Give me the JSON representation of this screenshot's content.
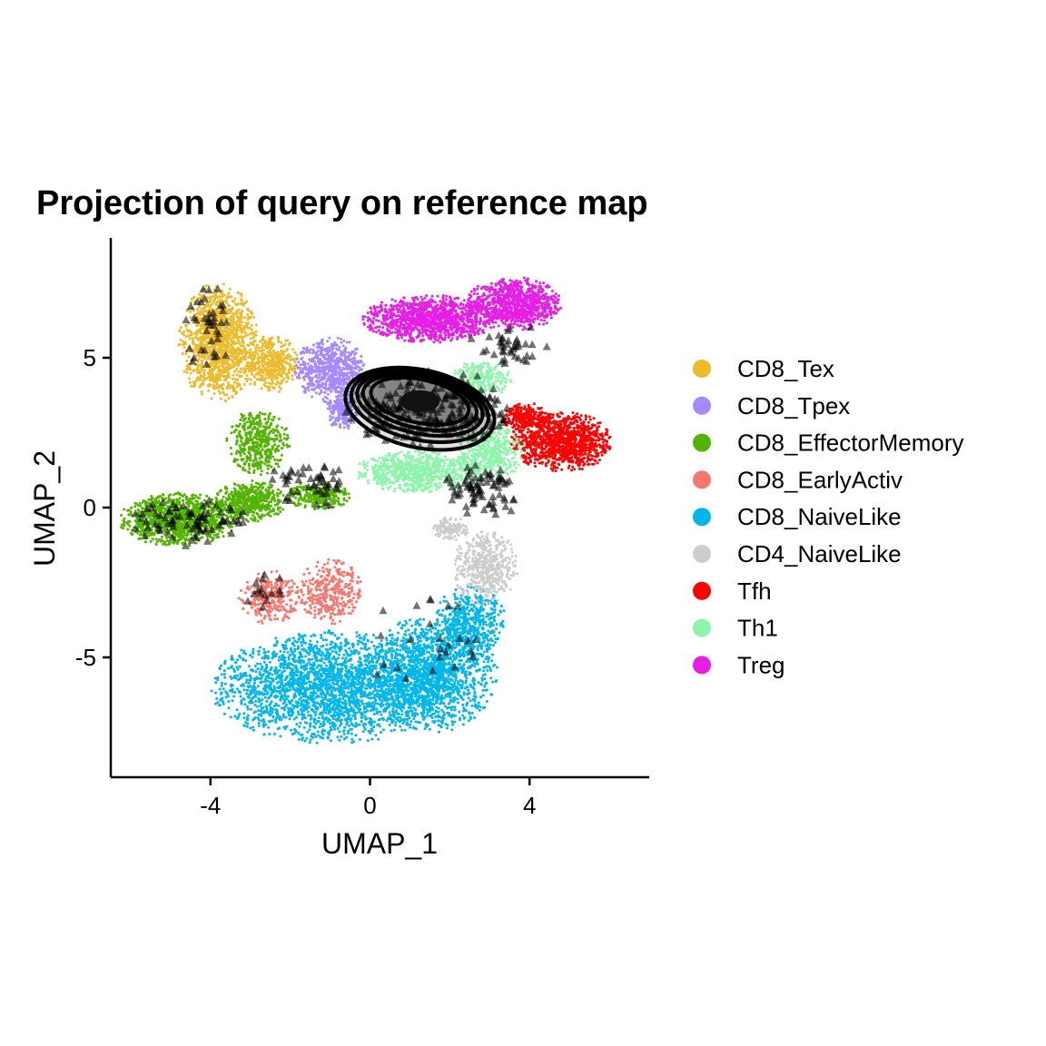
{
  "chart_data": {
    "type": "scatter",
    "title": "Projection of query on reference map",
    "xlabel": "UMAP_1",
    "ylabel": "UMAP_2",
    "xlim": [
      -6.5,
      7.0
    ],
    "ylim": [
      -9.0,
      9.0
    ],
    "x_ticks": [
      {
        "value": -4,
        "label": "-4"
      },
      {
        "value": 0,
        "label": "0"
      },
      {
        "value": 4,
        "label": "4"
      }
    ],
    "y_ticks": [
      {
        "value": 5,
        "label": "5"
      },
      {
        "value": 0,
        "label": "0"
      },
      {
        "value": -5,
        "label": "-5"
      }
    ],
    "grid": false,
    "legend_position": "right",
    "series": [
      {
        "name": "CD8_Tex",
        "color": "#EDBA2B",
        "regions": [
          {
            "cx": -3.8,
            "cy": 5.5,
            "rx": 1.0,
            "ry": 2.0,
            "n": 1300
          },
          {
            "cx": -2.5,
            "cy": 4.8,
            "rx": 0.7,
            "ry": 1.0,
            "n": 400
          }
        ]
      },
      {
        "name": "CD8_Tpex",
        "color": "#A58AFF",
        "regions": [
          {
            "cx": -1.0,
            "cy": 4.6,
            "rx": 0.9,
            "ry": 1.1,
            "n": 700
          },
          {
            "cx": -0.7,
            "cy": 3.2,
            "rx": 0.4,
            "ry": 0.6,
            "n": 200
          }
        ]
      },
      {
        "name": "CD8_EffectorMemory",
        "color": "#53B400",
        "regions": [
          {
            "cx": -4.8,
            "cy": -0.4,
            "rx": 1.5,
            "ry": 0.9,
            "n": 1100
          },
          {
            "cx": -3.0,
            "cy": 0.2,
            "rx": 0.9,
            "ry": 0.7,
            "n": 500
          },
          {
            "cx": -2.8,
            "cy": 2.2,
            "rx": 0.8,
            "ry": 1.1,
            "n": 450
          },
          {
            "cx": -1.3,
            "cy": 0.4,
            "rx": 0.8,
            "ry": 0.5,
            "n": 250
          }
        ]
      },
      {
        "name": "CD8_EarlyActiv",
        "color": "#F8766D",
        "regions": [
          {
            "cx": -2.5,
            "cy": -3.0,
            "rx": 0.8,
            "ry": 0.9,
            "n": 300
          },
          {
            "cx": -1.0,
            "cy": -2.8,
            "rx": 0.8,
            "ry": 1.1,
            "n": 350
          }
        ]
      },
      {
        "name": "CD8_NaiveLike",
        "color": "#00B6EB",
        "regions": [
          {
            "cx": -1.0,
            "cy": -6.0,
            "rx": 3.0,
            "ry": 1.9,
            "n": 2600
          },
          {
            "cx": 1.6,
            "cy": -5.5,
            "rx": 1.6,
            "ry": 2.0,
            "n": 1400
          },
          {
            "cx": 2.5,
            "cy": -3.8,
            "rx": 0.9,
            "ry": 1.2,
            "n": 500
          }
        ]
      },
      {
        "name": "CD4_NaiveLike",
        "color": "#CCCCCC",
        "regions": [
          {
            "cx": 2.9,
            "cy": -2.0,
            "rx": 0.8,
            "ry": 1.3,
            "n": 500
          },
          {
            "cx": 2.0,
            "cy": -0.7,
            "rx": 0.5,
            "ry": 0.4,
            "n": 120
          }
        ]
      },
      {
        "name": "Tfh",
        "color": "#FF0000",
        "regions": [
          {
            "cx": 4.8,
            "cy": 2.2,
            "rx": 1.3,
            "ry": 1.0,
            "n": 1100
          },
          {
            "cx": 3.9,
            "cy": 3.0,
            "rx": 0.6,
            "ry": 0.5,
            "n": 250
          }
        ]
      },
      {
        "name": "Th1",
        "color": "#8CF5A9",
        "regions": [
          {
            "cx": 1.2,
            "cy": 1.2,
            "rx": 1.6,
            "ry": 0.7,
            "n": 800
          },
          {
            "cx": 3.0,
            "cy": 1.8,
            "rx": 0.8,
            "ry": 1.0,
            "n": 450
          },
          {
            "cx": 2.8,
            "cy": 4.3,
            "rx": 0.8,
            "ry": 0.6,
            "n": 250
          }
        ]
      },
      {
        "name": "Treg",
        "color": "#E61EE6",
        "regions": [
          {
            "cx": 1.5,
            "cy": 6.3,
            "rx": 1.7,
            "ry": 0.8,
            "n": 1200
          },
          {
            "cx": 3.6,
            "cy": 6.8,
            "rx": 1.2,
            "ry": 0.9,
            "n": 900
          }
        ]
      }
    ],
    "query": {
      "marker": "triangle",
      "color": "#000000",
      "opacity": 0.55,
      "regions": [
        {
          "cx": 1.5,
          "cy": 3.3,
          "rx": 2.2,
          "ry": 1.3,
          "n": 220
        },
        {
          "cx": -4.5,
          "cy": -0.5,
          "rx": 1.5,
          "ry": 0.9,
          "n": 80
        },
        {
          "cx": -4.0,
          "cy": 6.0,
          "rx": 0.7,
          "ry": 1.5,
          "n": 40
        },
        {
          "cx": 2.8,
          "cy": 0.5,
          "rx": 1.0,
          "ry": 1.0,
          "n": 80
        },
        {
          "cx": -1.5,
          "cy": 0.8,
          "rx": 1.2,
          "ry": 0.8,
          "n": 50
        },
        {
          "cx": 3.5,
          "cy": 5.5,
          "rx": 1.0,
          "ry": 0.8,
          "n": 40
        },
        {
          "cx": 1.5,
          "cy": -4.5,
          "rx": 2.0,
          "ry": 1.5,
          "n": 25
        },
        {
          "cx": -2.6,
          "cy": -2.8,
          "rx": 0.6,
          "ry": 0.6,
          "n": 15
        }
      ],
      "density_contours": {
        "center": [
          1.25,
          3.55
        ],
        "levels": [
          {
            "rx": 1.25,
            "ry": 0.72,
            "dy": 0.0
          },
          {
            "rx": 1.45,
            "ry": 0.85,
            "dy": -0.05
          },
          {
            "rx": 1.6,
            "ry": 0.98,
            "dy": -0.1
          },
          {
            "rx": 1.75,
            "ry": 1.12,
            "dy": -0.17
          },
          {
            "rx": 1.9,
            "ry": 1.3,
            "dy": -0.25
          }
        ]
      }
    }
  }
}
